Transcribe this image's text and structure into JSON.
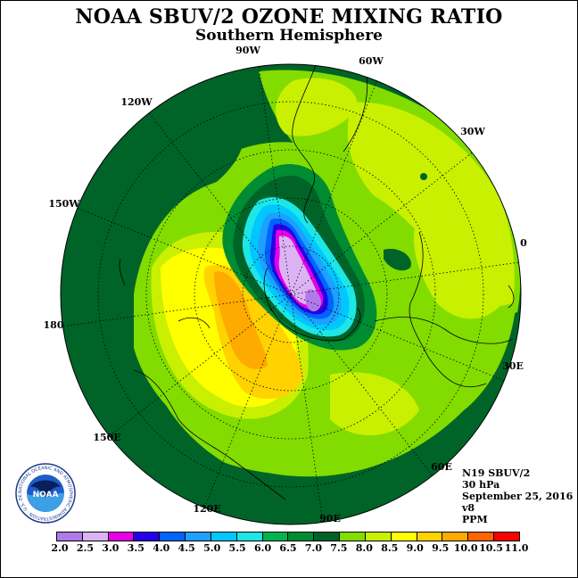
{
  "title": "NOAA SBUV/2 OZONE MIXING RATIO",
  "subtitle": "Southern Hemisphere",
  "longitude_labels": [
    "90W",
    "60W",
    "30W",
    "0",
    "30E",
    "60E",
    "90E",
    "120E",
    "150E",
    "180",
    "150W",
    "120W"
  ],
  "info": {
    "satellite": "N19 SBUV/2",
    "level": "30 hPa",
    "date": "September 25, 2016",
    "version": "v8",
    "units": "PPM"
  },
  "colorbar": {
    "ticks": [
      "2.0",
      "2.5",
      "3.0",
      "3.5",
      "4.0",
      "4.5",
      "5.0",
      "5.5",
      "6.0",
      "6.5",
      "7.0",
      "7.5",
      "8.0",
      "8.5",
      "9.0",
      "9.5",
      "10.0",
      "10.5",
      "11.0"
    ],
    "colors": [
      "#b07ae8",
      "#dcb4f5",
      "#e600e6",
      "#2800e6",
      "#0064ff",
      "#1ea0ff",
      "#00c8ff",
      "#1ee6e6",
      "#00b450",
      "#008c32",
      "#006428",
      "#82dc00",
      "#c8f000",
      "#ffff00",
      "#ffd200",
      "#ffaa00",
      "#ff6400",
      "#ff0000",
      "#8b5a2b"
    ]
  },
  "logo": {
    "text": "NOAA",
    "ring_text": "NATIONAL OCEANIC AND ATMOSPHERIC ADMINISTRATION · U.S. DEPARTMENT OF COMMERCE"
  }
}
